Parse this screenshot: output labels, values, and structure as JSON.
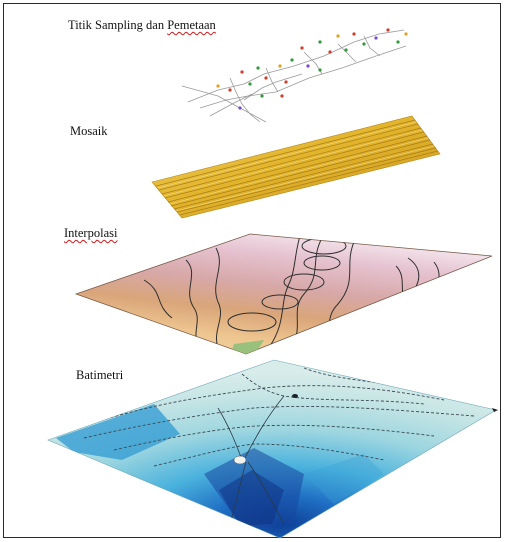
{
  "layers": [
    {
      "id": "sampling",
      "title_main": "Titik Sampling dan ",
      "title_flagged": "Pemetaan"
    },
    {
      "id": "mosaic",
      "title": "Mosaik"
    },
    {
      "id": "interpolation",
      "title": "Interpolasi"
    },
    {
      "id": "bathymetry",
      "title": "Batimetri"
    }
  ],
  "colors": {
    "mosaic_yellow": "#e8c23a",
    "interp_pink": "#e9c7d3",
    "interp_mauve": "#d3a6a6",
    "interp_tan": "#d9a77b",
    "interp_peach": "#eec48f",
    "bathy_light": "#bfe3e8",
    "bathy_mid": "#4cb4dc",
    "bathy_deep": "#1b5fb0",
    "spellcheck_red": "#d01818"
  }
}
